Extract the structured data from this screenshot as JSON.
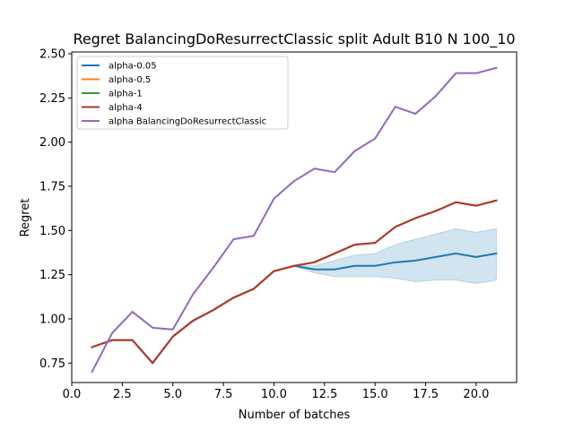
{
  "chart_data": {
    "type": "line",
    "title": "Regret BalancingDoResurrectClassic split Adult B10 N 100_10",
    "xlabel": "Number of batches",
    "ylabel": "Regret",
    "xlim": [
      0,
      22
    ],
    "ylim": [
      0.64,
      2.51
    ],
    "x_ticks": [
      0,
      2.5,
      5,
      7.5,
      10,
      12.5,
      15,
      17.5,
      20
    ],
    "x_tick_labels": [
      "0.0",
      "2.5",
      "5.0",
      "7.5",
      "10.0",
      "12.5",
      "15.0",
      "17.5",
      "20.0"
    ],
    "y_ticks": [
      0.75,
      1.0,
      1.25,
      1.5,
      1.75,
      2.0,
      2.25,
      2.5
    ],
    "y_tick_labels": [
      "0.75",
      "1.00",
      "1.25",
      "1.50",
      "1.75",
      "2.00",
      "2.25",
      "2.50"
    ],
    "grid": false,
    "legend_position": "top-left",
    "x": [
      1,
      2,
      3,
      4,
      5,
      6,
      7,
      8,
      9,
      10,
      11,
      12,
      13,
      14,
      15,
      16,
      17,
      18,
      19,
      20,
      21
    ],
    "series": [
      {
        "name": "alpha-0.05",
        "color": "#1f77b4",
        "values": [
          0.84,
          0.88,
          0.88,
          0.75,
          0.9,
          0.99,
          1.05,
          1.12,
          1.17,
          1.27,
          1.3,
          1.28,
          1.28,
          1.3,
          1.3,
          1.32,
          1.33,
          1.35,
          1.37,
          1.35,
          1.37
        ],
        "band_lower": [
          0.84,
          0.88,
          0.88,
          0.75,
          0.9,
          0.99,
          1.05,
          1.12,
          1.17,
          1.27,
          1.3,
          1.26,
          1.24,
          1.24,
          1.24,
          1.23,
          1.21,
          1.22,
          1.22,
          1.2,
          1.22
        ],
        "band_upper": [
          0.84,
          0.88,
          0.88,
          0.75,
          0.9,
          0.99,
          1.05,
          1.12,
          1.17,
          1.27,
          1.3,
          1.3,
          1.33,
          1.36,
          1.37,
          1.42,
          1.45,
          1.48,
          1.51,
          1.49,
          1.51
        ]
      },
      {
        "name": "alpha-0.5",
        "color": "#ff7f0e",
        "values": [
          0.84,
          0.88,
          0.88,
          0.75,
          0.9,
          0.99,
          1.05,
          1.12,
          1.17,
          1.27,
          1.3,
          1.32,
          1.37,
          1.42,
          1.43,
          1.52,
          1.57,
          1.61,
          1.66,
          1.64,
          1.67
        ]
      },
      {
        "name": "alpha-1",
        "color": "#2ca02c",
        "values": [
          0.84,
          0.88,
          0.88,
          0.75,
          0.9,
          0.99,
          1.05,
          1.12,
          1.17,
          1.27,
          1.3,
          1.32,
          1.37,
          1.42,
          1.43,
          1.52,
          1.57,
          1.61,
          1.66,
          1.64,
          1.67
        ]
      },
      {
        "name": "alpha-4",
        "color": "#b5342f",
        "values": [
          0.84,
          0.88,
          0.88,
          0.75,
          0.9,
          0.99,
          1.05,
          1.12,
          1.17,
          1.27,
          1.3,
          1.32,
          1.37,
          1.42,
          1.43,
          1.52,
          1.57,
          1.61,
          1.66,
          1.64,
          1.67
        ]
      },
      {
        "name": "alpha BalancingDoResurrectClassic",
        "color": "#9467bd",
        "values": [
          0.7,
          0.92,
          1.04,
          0.95,
          0.94,
          1.14,
          1.29,
          1.45,
          1.47,
          1.68,
          1.78,
          1.85,
          1.83,
          1.95,
          2.02,
          2.2,
          2.16,
          2.26,
          2.39,
          2.39,
          2.42
        ]
      }
    ]
  }
}
